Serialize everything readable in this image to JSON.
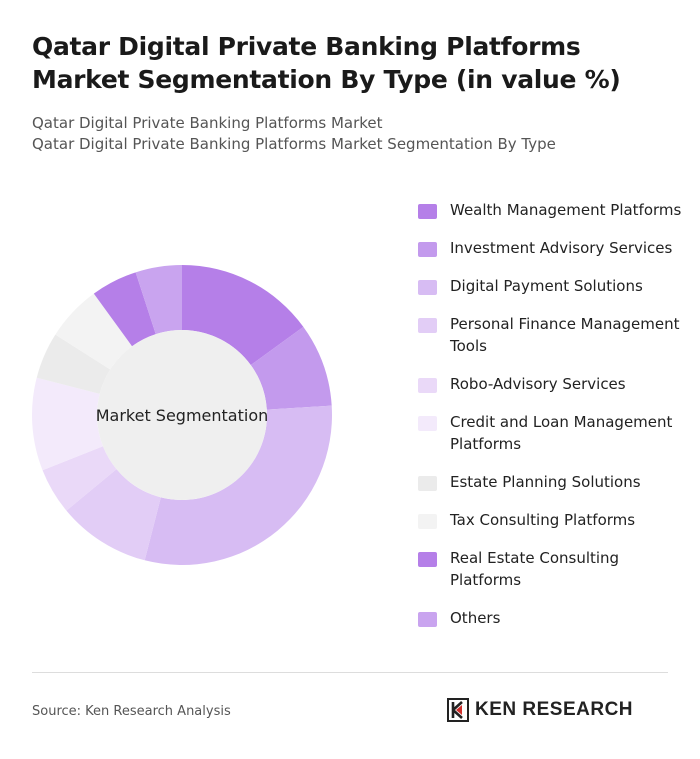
{
  "header": {
    "title": "Qatar Digital Private Banking Platforms Market Segmentation By Type (in value %)",
    "subtitle_line1": "Qatar Digital Private Banking Platforms Market",
    "subtitle_line2": "Qatar Digital Private Banking Platforms Market Segmentation By Type"
  },
  "chart_data": {
    "type": "pie",
    "center_label": "Market Segmentation",
    "categories": [
      "Wealth Management Platforms",
      "Investment Advisory Services",
      "Digital Payment Solutions",
      "Personal Finance Management Tools",
      "Robo-Advisory Services",
      "Credit and Loan Management Platforms",
      "Estate Planning Solutions",
      "Tax Consulting Platforms",
      "Real Estate Consulting Platforms",
      "Others"
    ],
    "values": [
      15,
      9,
      30,
      10,
      5,
      10,
      5,
      6,
      5,
      5
    ],
    "colors": [
      "#b57fe8",
      "#c39aed",
      "#d7bcf3",
      "#e2cdf6",
      "#ead9f8",
      "#f3eafb",
      "#ebebeb",
      "#f3f3f3",
      "#b57fe8",
      "#c9a4ef"
    ],
    "legend_position": "right"
  },
  "footer": {
    "source": "Source: Ken Research Analysis",
    "brand": "KEN RESEARCH"
  }
}
